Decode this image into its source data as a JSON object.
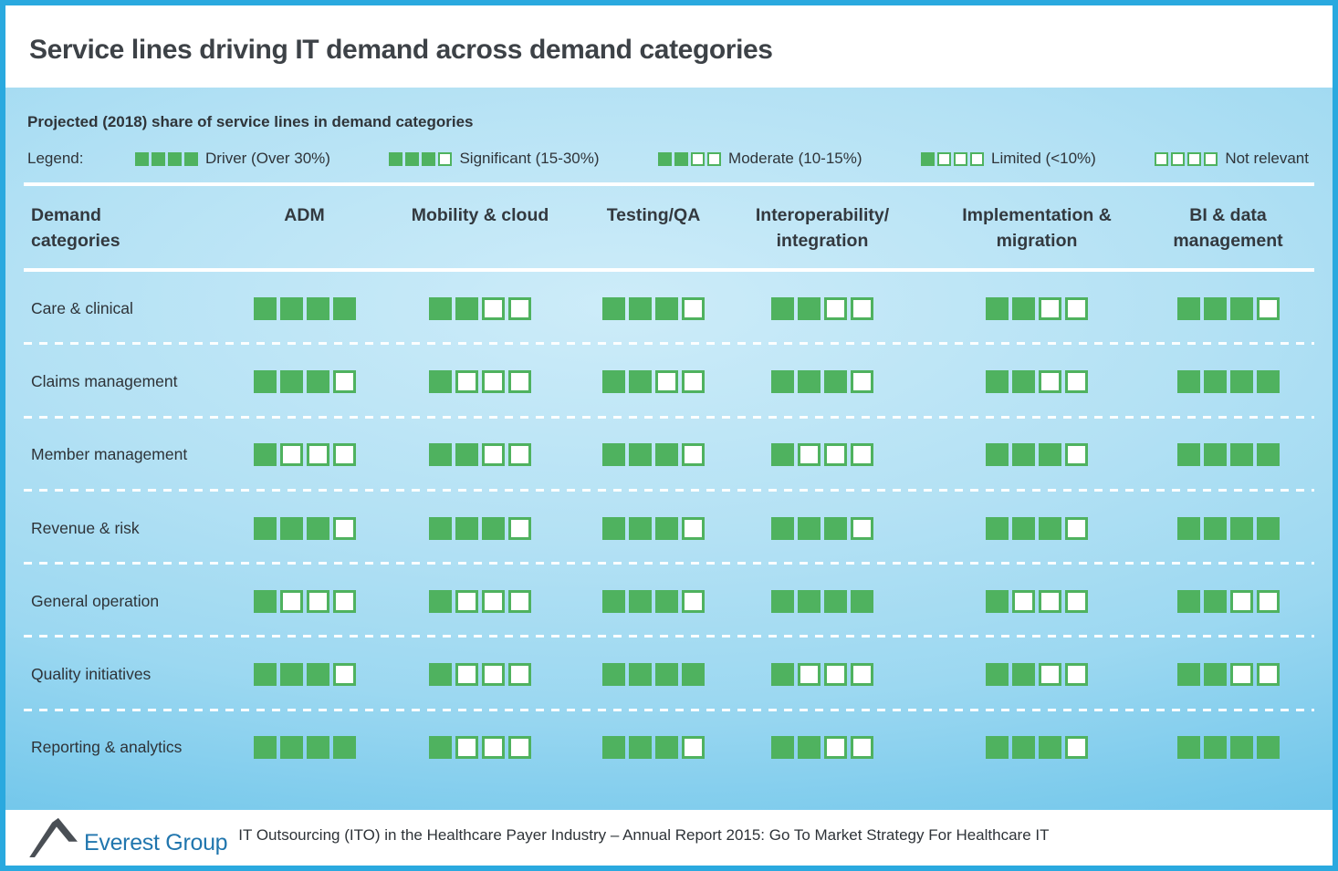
{
  "title": "Service lines driving IT demand across demand categories",
  "subtitle": "Projected (2018) share of service lines in demand categories",
  "legend": {
    "label": "Legend:",
    "items": [
      {
        "filled": 4,
        "label": "Driver (Over 30%)"
      },
      {
        "filled": 3,
        "label": "Significant (15-30%)"
      },
      {
        "filled": 2,
        "label": "Moderate (10-15%)"
      },
      {
        "filled": 1,
        "label": "Limited (<10%)"
      },
      {
        "filled": 0,
        "label": "Not relevant"
      }
    ]
  },
  "table": {
    "row_header": "Demand categories",
    "columns": [
      "ADM",
      "Mobility & cloud",
      "Testing/QA",
      "Interoperability/ integration",
      "Implementation & migration",
      "BI & data management"
    ],
    "rows": [
      {
        "category": "Care & clinical",
        "ratings": [
          4,
          2,
          3,
          2,
          2,
          3
        ]
      },
      {
        "category": "Claims management",
        "ratings": [
          3,
          1,
          2,
          3,
          2,
          4
        ]
      },
      {
        "category": "Member management",
        "ratings": [
          1,
          2,
          3,
          1,
          3,
          4
        ]
      },
      {
        "category": "Revenue & risk",
        "ratings": [
          3,
          3,
          3,
          3,
          3,
          4
        ]
      },
      {
        "category": "General operation",
        "ratings": [
          1,
          1,
          3,
          4,
          1,
          2
        ]
      },
      {
        "category": "Quality initiatives",
        "ratings": [
          3,
          1,
          4,
          1,
          2,
          2
        ]
      },
      {
        "category": "Reporting & analytics",
        "ratings": [
          4,
          1,
          3,
          2,
          3,
          4
        ]
      }
    ],
    "scale_max": 4
  },
  "footer": {
    "brand": "Everest Group",
    "text": "IT Outsourcing (ITO) in the Healthcare Payer Industry – Annual Report 2015: Go To Market Strategy For Healthcare IT"
  },
  "colors": {
    "accent_green": "#4fb25f",
    "frame_blue": "#2aa9df",
    "panel_blue_light": "#b3e1f4",
    "panel_blue_dark": "#57b8e4",
    "brand_blue": "#2176ae",
    "text_dark": "#33393f"
  },
  "chart_data": {
    "type": "heatmap",
    "title": "Service lines driving IT demand across demand categories",
    "subtitle": "Projected (2018) share of service lines in demand categories",
    "x_categories": [
      "ADM",
      "Mobility & cloud",
      "Testing/QA",
      "Interoperability/integration",
      "Implementation & migration",
      "BI & data management"
    ],
    "y_categories": [
      "Care & clinical",
      "Claims management",
      "Member management",
      "Revenue & risk",
      "General operation",
      "Quality initiatives",
      "Reporting & analytics"
    ],
    "values_filled_of_4": [
      [
        4,
        2,
        3,
        2,
        2,
        3
      ],
      [
        3,
        1,
        2,
        3,
        2,
        4
      ],
      [
        1,
        2,
        3,
        1,
        3,
        4
      ],
      [
        3,
        3,
        3,
        3,
        3,
        4
      ],
      [
        1,
        1,
        3,
        4,
        1,
        2
      ],
      [
        3,
        1,
        4,
        1,
        2,
        2
      ],
      [
        4,
        1,
        3,
        2,
        3,
        4
      ]
    ],
    "scale": [
      {
        "filled": 4,
        "meaning": "Driver (Over 30%)"
      },
      {
        "filled": 3,
        "meaning": "Significant (15-30%)"
      },
      {
        "filled": 2,
        "meaning": "Moderate (10-15%)"
      },
      {
        "filled": 1,
        "meaning": "Limited (<10%)"
      },
      {
        "filled": 0,
        "meaning": "Not relevant"
      }
    ],
    "legend_position": "top"
  }
}
